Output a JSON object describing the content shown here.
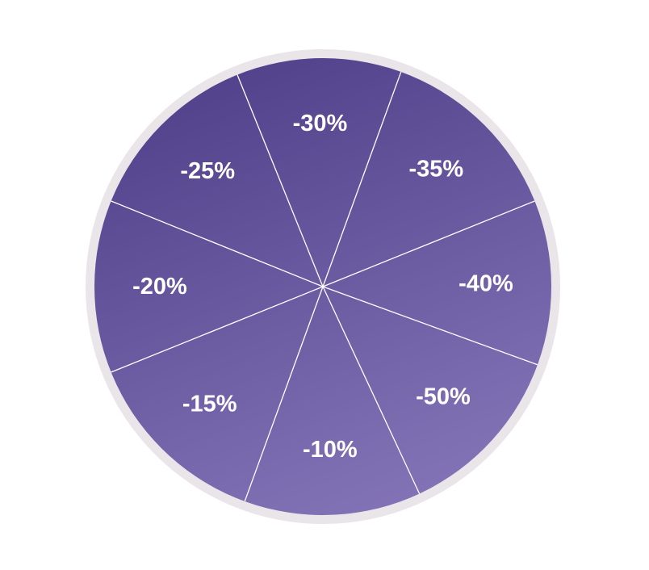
{
  "wheel": {
    "ring_color": "#e9e5e9",
    "gradient_start": "#51418b",
    "gradient_end": "#8474b7",
    "divider_color": "#ffffff",
    "label_color": "#ffffff",
    "segments": [
      {
        "label": "-30%"
      },
      {
        "label": "-35%"
      },
      {
        "label": "-40%"
      },
      {
        "label": "-50%"
      },
      {
        "label": "-10%"
      },
      {
        "label": "-15%"
      },
      {
        "label": "-20%"
      },
      {
        "label": "-25%"
      }
    ]
  }
}
